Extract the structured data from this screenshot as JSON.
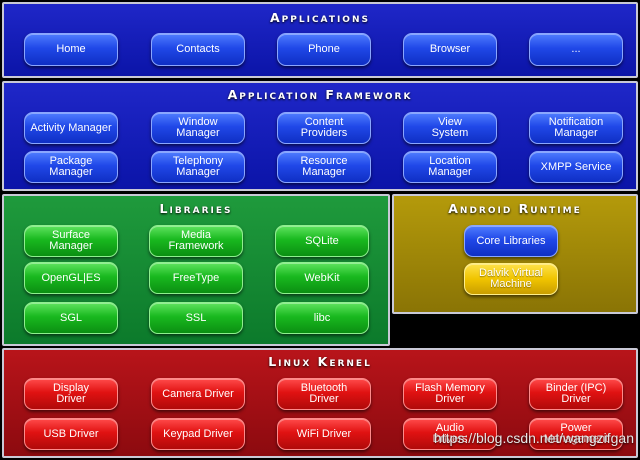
{
  "applications": {
    "title": "Applications",
    "items": [
      "Home",
      "Contacts",
      "Phone",
      "Browser",
      "..."
    ]
  },
  "framework": {
    "title": "Application Framework",
    "items": [
      "Activity Manager",
      "Window\nManager",
      "Content\nProviders",
      "View\nSystem",
      "Notification\nManager",
      "Package Manager",
      "Telephony\nManager",
      "Resource\nManager",
      "Location\nManager",
      "XMPP Service"
    ]
  },
  "libraries": {
    "title": "Libraries",
    "items": [
      "Surface Manager",
      "Media\nFramework",
      "SQLite",
      "OpenGL|ES",
      "FreeType",
      "WebKit",
      "SGL",
      "SSL",
      "libc"
    ]
  },
  "runtime": {
    "title": "Android Runtime",
    "items": [
      "Core Libraries",
      "Dalvik Virtual\nMachine"
    ]
  },
  "kernel": {
    "title": "Linux Kernel",
    "items": [
      "Display\nDriver",
      "Camera Driver",
      "Bluetooth\nDriver",
      "Flash Memory\nDriver",
      "Binder (IPC)\nDriver",
      "USB Driver",
      "Keypad Driver",
      "WiFi Driver",
      "Audio\nDrivers",
      "Power\nManagement"
    ]
  },
  "watermark": "https://blog.csdn.net/wangzifgan",
  "colors": {
    "applications_bg": "#1a22c0",
    "libraries_bg": "#178a33",
    "runtime_bg": "#a08806",
    "kernel_bg": "#a80f14"
  }
}
